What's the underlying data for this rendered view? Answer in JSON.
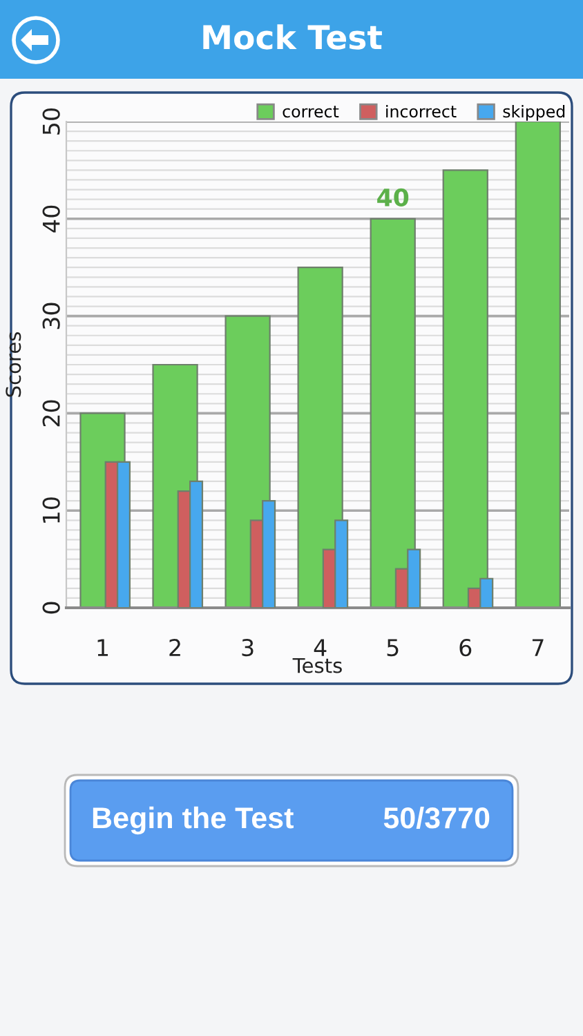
{
  "chart_data": {
    "type": "bar",
    "title": "Mock Test",
    "xlabel": "Tests",
    "ylabel": "Scores",
    "categories": [
      "1",
      "2",
      "3",
      "4",
      "5",
      "6",
      "7"
    ],
    "series": [
      {
        "name": "correct",
        "color": "#6ccd5c",
        "values": [
          20,
          25,
          30,
          35,
          40,
          45,
          50
        ]
      },
      {
        "name": "incorrect",
        "color": "#cf5f5f",
        "values": [
          15,
          12,
          9,
          6,
          4,
          2,
          null
        ]
      },
      {
        "name": "skipped",
        "color": "#47a8ee",
        "values": [
          15,
          13,
          11,
          9,
          6,
          3,
          null
        ]
      }
    ],
    "ylim": [
      0,
      50
    ],
    "yticks": [
      0,
      {
        "value": 1,
        "label": null
      },
      {
        "value": 2,
        "label": null
      },
      {
        "value": 3,
        "label": null
      },
      {
        "value": 4,
        "label": null
      },
      {
        "value": 5,
        "label": null
      },
      {
        "value": 6,
        "label": null
      },
      {
        "value": 7,
        "label": null
      },
      {
        "value": 8,
        "label": null
      },
      {
        "value": 9,
        "label": null
      },
      10,
      {
        "value": 11,
        "label": null
      },
      {
        "value": 12,
        "label": null
      },
      {
        "value": 13,
        "label": null
      },
      {
        "value": 14,
        "label": null
      },
      {
        "value": 15,
        "label": null
      },
      {
        "value": 16,
        "label": null
      },
      {
        "value": 17,
        "label": null
      },
      {
        "value": 18,
        "label": null
      },
      {
        "value": 19,
        "label": null
      },
      20,
      {
        "value": 21,
        "label": null
      },
      {
        "value": 22,
        "label": null
      },
      {
        "value": 23,
        "label": null
      },
      {
        "value": 24,
        "label": null
      },
      {
        "value": 25,
        "label": null
      },
      {
        "value": 26,
        "label": null
      },
      {
        "value": 27,
        "label": null
      },
      {
        "value": 28,
        "label": null
      },
      {
        "value": 29,
        "label": null
      },
      30,
      {
        "value": 31,
        "label": null
      },
      {
        "value": 32,
        "label": null
      },
      {
        "value": 33,
        "label": null
      },
      {
        "value": 34,
        "label": null
      },
      {
        "value": 35,
        "label": null
      },
      {
        "value": 36,
        "label": null
      },
      {
        "value": 37,
        "label": null
      },
      {
        "value": 38,
        "label": null
      },
      {
        "value": 39,
        "label": null
      },
      40,
      {
        "value": 41,
        "label": null
      },
      {
        "value": 42,
        "label": null
      },
      {
        "value": 43,
        "label": null
      },
      {
        "value": 44,
        "label": null
      },
      {
        "value": 45,
        "label": null
      },
      {
        "value": 46,
        "label": null
      },
      {
        "value": 47,
        "label": null
      },
      {
        "value": 48,
        "label": null
      },
      {
        "value": 49,
        "label": null
      },
      50
    ],
    "grid": "y",
    "legend": "top right",
    "annotations": [
      {
        "text": "40",
        "x": "5",
        "y": 40
      },
      "Begin the Test",
      "50/3770"
    ]
  }
}
